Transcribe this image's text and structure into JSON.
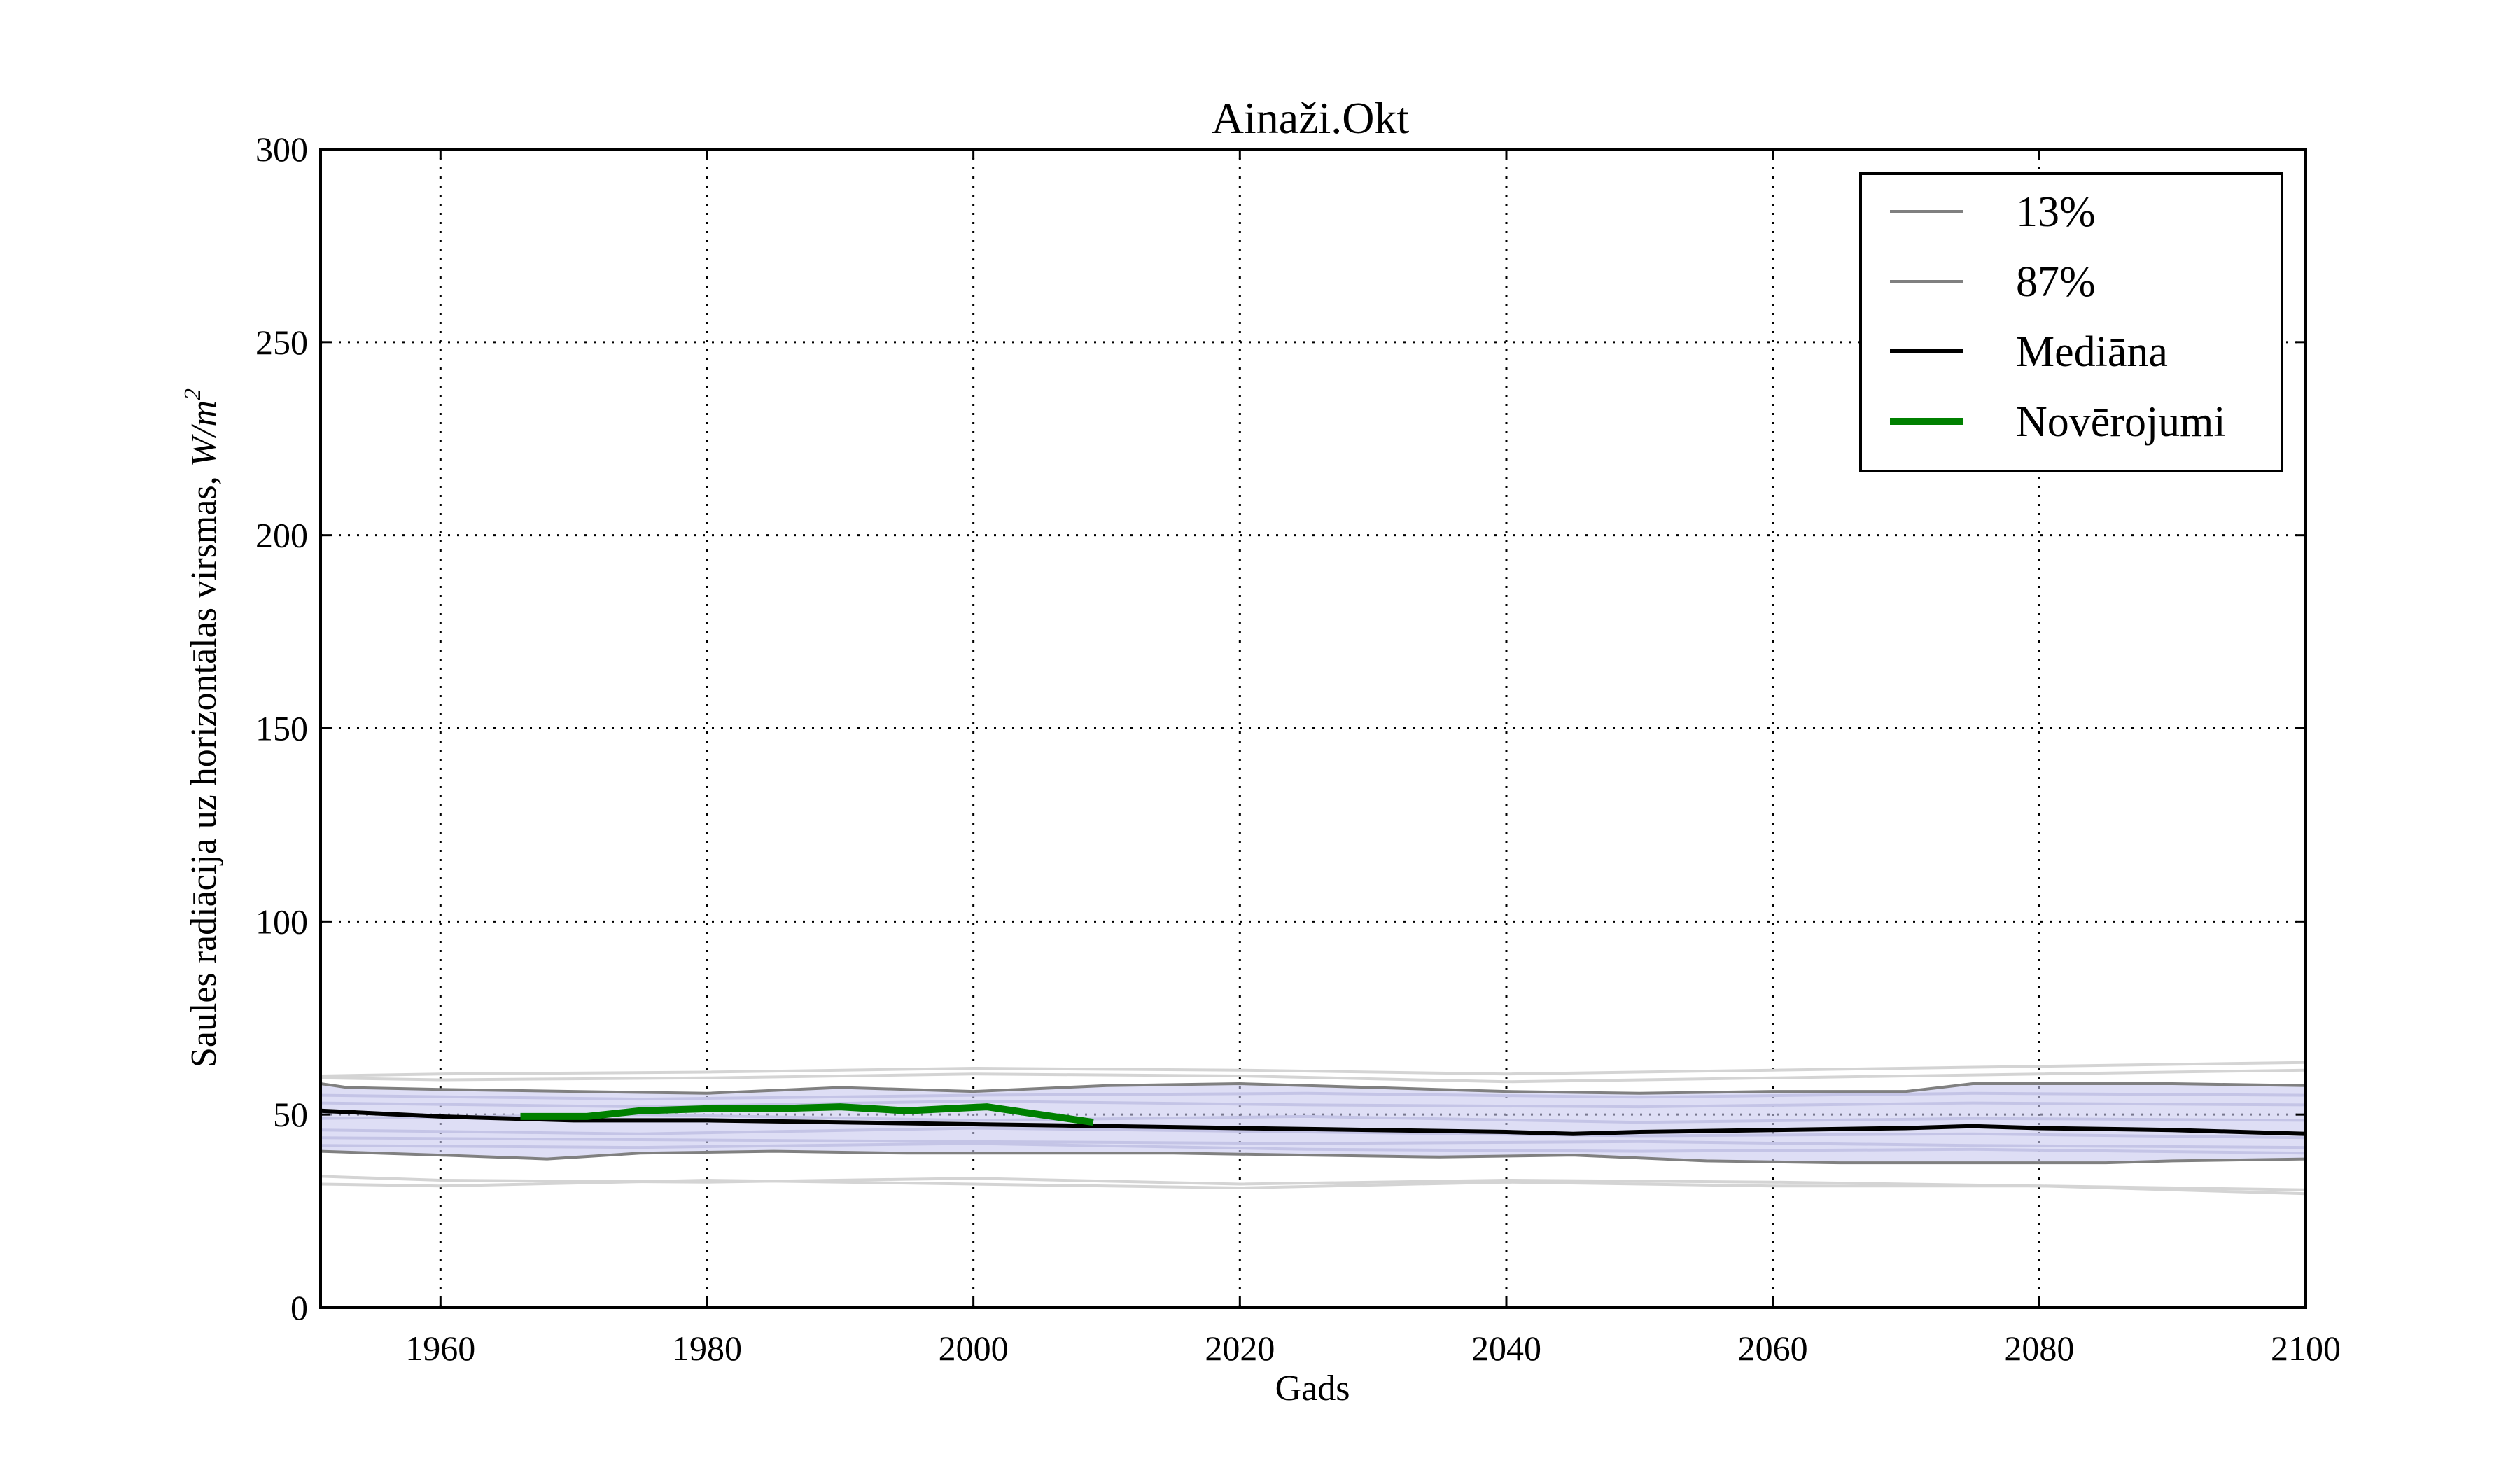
{
  "chart_data": {
    "type": "line",
    "title": "Ainaži.Okt",
    "xlabel": "Gads",
    "ylabel": "Saules radiācija uz horizontālas virsmas, ",
    "ylabel_unit": "W/m",
    "ylabel_unit_exponent": "2",
    "xlim": [
      1951,
      2100
    ],
    "ylim": [
      0,
      300
    ],
    "x_ticks": [
      1960,
      1980,
      2000,
      2020,
      2040,
      2060,
      2080,
      2100
    ],
    "y_ticks": [
      0,
      50,
      100,
      150,
      200,
      250,
      300
    ],
    "grid": true,
    "legend_position": "top-right",
    "colors": {
      "percentile": "#808080",
      "median": "#000000",
      "observations": "#008000",
      "band_fill": "#c8c8ee",
      "ensemble_light": "#d4d4d4",
      "ensemble_blue": "#c4c4e6"
    },
    "legend": [
      {
        "label": "13%",
        "style": "percentile"
      },
      {
        "label": "87%",
        "style": "percentile"
      },
      {
        "label": "Mediāna",
        "style": "median"
      },
      {
        "label": "Novērojumi",
        "style": "observations"
      }
    ],
    "series": [
      {
        "name": "13%",
        "style": "percentile",
        "x": [
          1951,
          1960,
          1968,
          1975,
          1985,
          1995,
          2005,
          2015,
          2025,
          2035,
          2045,
          2055,
          2065,
          2075,
          2085,
          2090,
          2100
        ],
        "values": [
          40.5,
          39.5,
          38.5,
          40,
          40.5,
          40,
          40,
          40,
          39.5,
          39,
          39.5,
          38,
          37.5,
          37.5,
          37.5,
          38,
          38.5
        ]
      },
      {
        "name": "87%",
        "style": "percentile",
        "x": [
          1951,
          1953,
          1960,
          1970,
          1980,
          1990,
          2000,
          2010,
          2020,
          2030,
          2040,
          2050,
          2060,
          2070,
          2075,
          2085,
          2090,
          2100
        ],
        "values": [
          58,
          57,
          56.5,
          56,
          55.5,
          57,
          56,
          57.5,
          58,
          57,
          56,
          55.5,
          56,
          56,
          58,
          58,
          58,
          57.5
        ]
      },
      {
        "name": "Mediāna",
        "style": "median",
        "x": [
          1951,
          1960,
          1970,
          1980,
          1990,
          2000,
          2010,
          2020,
          2030,
          2040,
          2045,
          2050,
          2060,
          2070,
          2075,
          2080,
          2090,
          2100
        ],
        "values": [
          51,
          49.5,
          48.5,
          48.5,
          48,
          47.5,
          47,
          46.5,
          46,
          45.5,
          45,
          45.5,
          46,
          46.5,
          47,
          46.5,
          46,
          45
        ]
      },
      {
        "name": "Novērojumi",
        "style": "observations",
        "x": [
          1966,
          1971,
          1975,
          1980,
          1985,
          1990,
          1995,
          2001,
          2005,
          2009
        ],
        "values": [
          49.5,
          49.5,
          51,
          51.5,
          51.5,
          52,
          51,
          52,
          50,
          48
        ]
      }
    ],
    "ensemble_light": [
      {
        "x": [
          1951,
          1960,
          1980,
          2000,
          2020,
          2040,
          2060,
          2080,
          2100
        ],
        "values": [
          60,
          60.5,
          61,
          62,
          61.5,
          60.5,
          61.5,
          62.5,
          63.5
        ]
      },
      {
        "x": [
          1951,
          1960,
          1980,
          2000,
          2020,
          2040,
          2060,
          2080,
          2100
        ],
        "values": [
          59.5,
          59,
          59.5,
          60.5,
          60,
          58.5,
          59.5,
          60.5,
          61.5
        ]
      },
      {
        "x": [
          1951,
          1960,
          1980,
          2000,
          2020,
          2040,
          2060,
          2080,
          2100
        ],
        "values": [
          34,
          33,
          32.5,
          33.5,
          32,
          33,
          32.5,
          31.5,
          30.5
        ]
      },
      {
        "x": [
          1951,
          1960,
          1980,
          2000,
          2020,
          2040,
          2060,
          2080,
          2100
        ],
        "values": [
          32,
          31.5,
          33,
          32,
          31,
          32.5,
          31.5,
          31.5,
          29.5
        ]
      }
    ],
    "ensemble_blue": [
      {
        "x": [
          1951,
          1975,
          2000,
          2025,
          2050,
          2075,
          2100
        ],
        "values": [
          55,
          54,
          55,
          55.5,
          54.5,
          55.5,
          55
        ]
      },
      {
        "x": [
          1951,
          1975,
          2000,
          2025,
          2050,
          2075,
          2100
        ],
        "values": [
          53,
          52,
          53.5,
          52.5,
          52,
          53,
          52.5
        ]
      },
      {
        "x": [
          1951,
          1975,
          2000,
          2025,
          2050,
          2075,
          2100
        ],
        "values": [
          49,
          50,
          48.5,
          49.5,
          48,
          49,
          48.5
        ]
      },
      {
        "x": [
          1951,
          1975,
          2000,
          2025,
          2050,
          2075,
          2100
        ],
        "values": [
          46,
          45,
          46.5,
          45.5,
          44.5,
          45,
          44
        ]
      },
      {
        "x": [
          1951,
          1975,
          2000,
          2025,
          2050,
          2075,
          2100
        ],
        "values": [
          44,
          43.5,
          43,
          42.5,
          43,
          42,
          41.5
        ]
      },
      {
        "x": [
          1951,
          1975,
          2000,
          2025,
          2050,
          2075,
          2100
        ],
        "values": [
          42,
          41.5,
          42.5,
          41,
          40.5,
          41,
          40
        ]
      }
    ]
  }
}
